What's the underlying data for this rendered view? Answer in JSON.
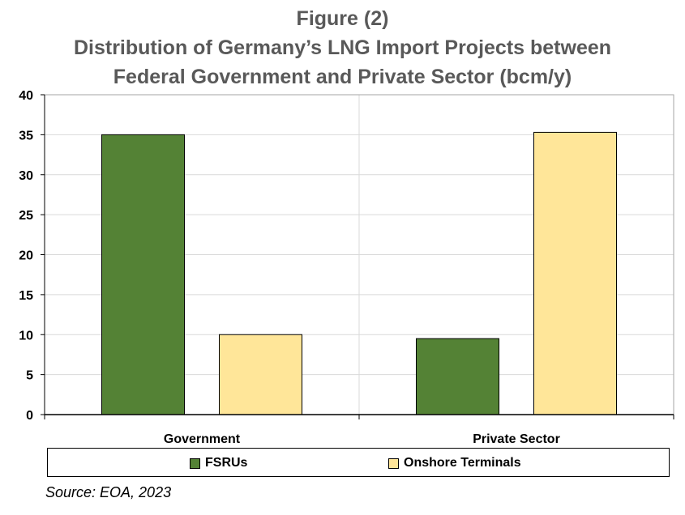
{
  "chart_data": {
    "type": "bar",
    "title": [
      "Figure (2)",
      "Distribution of Germany’s LNG Import Projects between",
      "Federal Government and Private Sector (bcm/y)"
    ],
    "categories": [
      "Government",
      "Private Sector"
    ],
    "series": [
      {
        "name": "FSRUs",
        "color": "#548235",
        "values": [
          35,
          9.5
        ]
      },
      {
        "name": "Onshore Terminals",
        "color": "#FFE699",
        "values": [
          10,
          35.3
        ]
      }
    ],
    "ylim": [
      0,
      40
    ],
    "yticks": [
      0,
      5,
      10,
      15,
      20,
      25,
      30,
      35,
      40
    ],
    "ytick_labels": [
      "0",
      "5",
      "10",
      "15",
      "20",
      "25",
      "30",
      "35",
      "40"
    ],
    "xlabel": "",
    "ylabel": "",
    "grid": true,
    "legend_position": "bottom"
  },
  "source": "Source: EOA, 2023"
}
